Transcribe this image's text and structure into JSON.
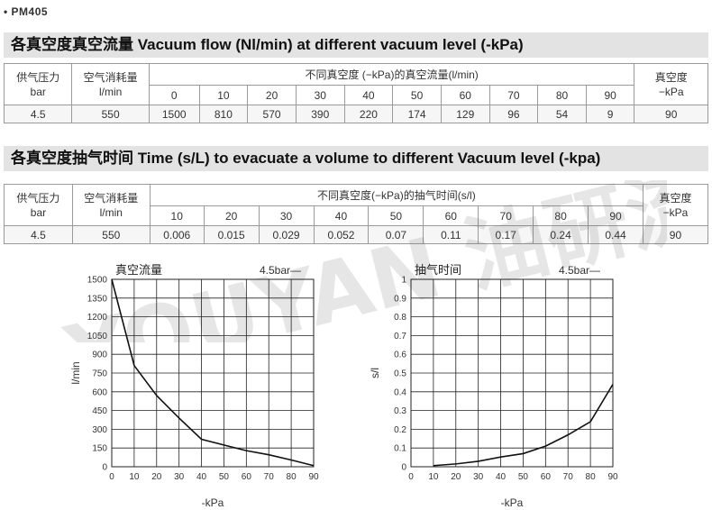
{
  "model": "• PM405",
  "section1": {
    "title_cn": "各真空度真空流量",
    "title_en": " Vacuum flow (Nl/min) at different vacuum level (-kPa)",
    "col_pressure": "供气压力",
    "col_pressure_unit": "bar",
    "col_air": "空气消耗量",
    "col_air_unit": "l/min",
    "col_group": "不同真空度 (−kPa)的真空流量(l/min)",
    "col_vac": "真空度",
    "col_vac_unit": "−kPa",
    "levels": [
      "0",
      "10",
      "20",
      "30",
      "40",
      "50",
      "60",
      "70",
      "80",
      "90"
    ],
    "row": {
      "pressure": "4.5",
      "air": "550",
      "values": [
        "1500",
        "810",
        "570",
        "390",
        "220",
        "174",
        "129",
        "96",
        "54",
        "9"
      ],
      "vac": "90"
    }
  },
  "section2": {
    "title_cn": "各真空度抽气时间",
    "title_en": " Time (s/L) to evacuate a volume to different Vacuum level (-kpa)",
    "col_pressure": "供气压力",
    "col_pressure_unit": "bar",
    "col_air": "空气消耗量",
    "col_air_unit": "l/min",
    "col_group": "不同真空度(−kPa)的抽气时间(s/l)",
    "col_vac": "真空度",
    "col_vac_unit": "−kPa",
    "levels": [
      "10",
      "20",
      "30",
      "40",
      "50",
      "60",
      "70",
      "80",
      "90"
    ],
    "row": {
      "pressure": "4.5",
      "air": "550",
      "values": [
        "0.006",
        "0.015",
        "0.029",
        "0.052",
        "0.07",
        "0.11",
        "0.17",
        "0.24",
        "0.44"
      ],
      "vac": "90"
    }
  },
  "watermark_text": "YOUYAN 油研流体",
  "chart_data": [
    {
      "type": "line",
      "title": "真空流量",
      "legend": "4.5bar—",
      "xlabel": "-kPa",
      "ylabel": "l/min",
      "x": [
        0,
        10,
        20,
        30,
        40,
        50,
        60,
        70,
        80,
        90
      ],
      "xticks": [
        "0",
        "10",
        "20",
        "30",
        "40",
        "50",
        "60",
        "70",
        "80",
        "90"
      ],
      "yticks": [
        "0",
        "150",
        "300",
        "450",
        "600",
        "750",
        "900",
        "1050",
        "1200",
        "1350",
        "1500"
      ],
      "xlim": [
        0,
        90
      ],
      "ylim": [
        0,
        1500
      ],
      "grid": true,
      "series": [
        {
          "values": [
            1500,
            810,
            570,
            390,
            220,
            174,
            129,
            96,
            54,
            9
          ]
        }
      ]
    },
    {
      "type": "line",
      "title": "抽气时间",
      "legend": "4.5bar—",
      "xlabel": "-kPa",
      "ylabel": "s/l",
      "x": [
        10,
        20,
        30,
        40,
        50,
        60,
        70,
        80,
        90
      ],
      "xticks": [
        "0",
        "10",
        "20",
        "30",
        "40",
        "50",
        "60",
        "70",
        "80",
        "90"
      ],
      "yticks": [
        "0",
        "0.1",
        "0.2",
        "0.3",
        "0.4",
        "0.5",
        "0.6",
        "0.7",
        "0.8",
        "0.9",
        "1"
      ],
      "xlim": [
        0,
        90
      ],
      "ylim": [
        0,
        1
      ],
      "grid": true,
      "series": [
        {
          "values": [
            0.006,
            0.015,
            0.029,
            0.052,
            0.07,
            0.11,
            0.17,
            0.24,
            0.44
          ]
        }
      ]
    }
  ]
}
